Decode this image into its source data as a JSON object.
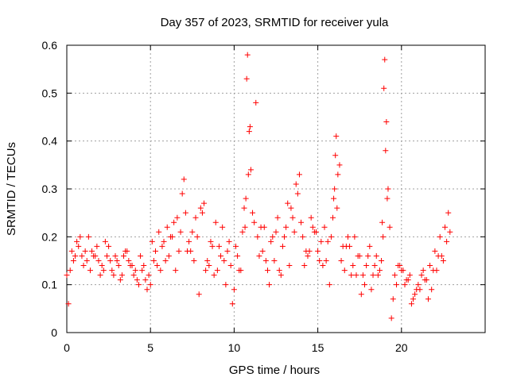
{
  "chart_data": {
    "type": "scatter",
    "title": "Day 357 of 2023, SRMTID for receiver yula",
    "xlabel": "GPS time / hours",
    "ylabel": "SRMTID / TECUs",
    "xlim": [
      0,
      25
    ],
    "ylim": [
      0,
      0.6
    ],
    "x_ticks": [
      0,
      5,
      10,
      15,
      20
    ],
    "x_tick_labels": [
      "0",
      "5",
      "10",
      "15",
      "20"
    ],
    "y_ticks": [
      0,
      0.1,
      0.2,
      0.3,
      0.4,
      0.5,
      0.6
    ],
    "y_tick_labels": [
      "0",
      "0.1",
      "0.2",
      "0.3",
      "0.4",
      "0.5",
      "0.6"
    ],
    "grid": true,
    "marker": "+",
    "series": [
      {
        "name": "SRMTID",
        "color": "#ff0000",
        "x": [
          0.0,
          0.3,
          0.6,
          0.9,
          1.2,
          1.5,
          1.8,
          2.1,
          2.4,
          2.7,
          3.0,
          3.3,
          3.6,
          3.9,
          4.2,
          4.5,
          4.8,
          5.1,
          5.4,
          5.7,
          6.0,
          6.3,
          6.6,
          6.9,
          7.2,
          7.5,
          7.8,
          8.1,
          8.4,
          8.7,
          9.0,
          9.3,
          9.6,
          9.9,
          10.2,
          10.5,
          10.7,
          10.8,
          10.9,
          11.0,
          11.1,
          11.4,
          11.7,
          12.0,
          12.3,
          12.6,
          12.9,
          13.2,
          13.5,
          13.8,
          14.1,
          14.4,
          14.7,
          15.0,
          15.3,
          15.6,
          15.9,
          16.0,
          16.1,
          16.2,
          16.5,
          16.8,
          17.1,
          17.4,
          17.7,
          18.0,
          18.3,
          18.6,
          18.8,
          18.9,
          19.0,
          19.1,
          19.3,
          19.6,
          19.9,
          20.2,
          20.5,
          20.8,
          21.1,
          21.4,
          21.7,
          22.0,
          22.3,
          22.6,
          22.9,
          0.1,
          0.4,
          0.7,
          1.0,
          1.3,
          1.6,
          1.9,
          2.2,
          2.5,
          2.8,
          3.1,
          3.4,
          3.7,
          4.0,
          4.3,
          4.6,
          4.9,
          5.2,
          5.5,
          5.8,
          6.1,
          6.4,
          6.7,
          7.0,
          7.3,
          7.6,
          7.9,
          8.2,
          8.5,
          8.8,
          9.1,
          9.4,
          9.7,
          10.0,
          10.3,
          10.6,
          11.3,
          11.6,
          11.9,
          12.2,
          12.5,
          12.8,
          13.1,
          13.4,
          13.7,
          14.0,
          14.3,
          14.6,
          14.9,
          15.2,
          15.5,
          15.8,
          16.3,
          16.6,
          16.9,
          17.2,
          17.5,
          17.8,
          18.1,
          18.4,
          18.7,
          19.2,
          19.5,
          19.8,
          20.1,
          20.4,
          20.7,
          21.0,
          21.3,
          21.6,
          21.9,
          22.2,
          22.5,
          22.8,
          0.2,
          0.5,
          0.8,
          1.1,
          1.4,
          1.7,
          2.0,
          2.3,
          2.6,
          2.9,
          3.2,
          3.5,
          3.8,
          4.1,
          4.4,
          4.7,
          5.0,
          5.3,
          5.6,
          5.9,
          6.2,
          6.5,
          6.8,
          7.1,
          7.4,
          7.7,
          8.0,
          8.3,
          8.6,
          8.9,
          9.2,
          9.5,
          9.8,
          10.1,
          10.4,
          10.65,
          10.75,
          10.85,
          10.95,
          11.2,
          11.5,
          11.8,
          12.1,
          12.4,
          12.7,
          13.0,
          13.3,
          13.6,
          13.9,
          14.2,
          14.5,
          14.8,
          15.1,
          15.4,
          15.7,
          15.95,
          16.05,
          16.15,
          16.4,
          16.7,
          17.0,
          17.3,
          17.6,
          17.9,
          18.2,
          18.5,
          18.85,
          18.95,
          19.05,
          19.15,
          19.4,
          19.7,
          20.0,
          20.3,
          20.6,
          20.9,
          21.2,
          21.5,
          21.8,
          22.1,
          22.4,
          22.7
        ],
        "y": [
          0.12,
          0.17,
          0.19,
          0.16,
          0.15,
          0.17,
          0.18,
          0.14,
          0.16,
          0.13,
          0.15,
          0.12,
          0.17,
          0.14,
          0.11,
          0.13,
          0.09,
          0.19,
          0.14,
          0.18,
          0.22,
          0.2,
          0.24,
          0.29,
          0.17,
          0.21,
          0.2,
          0.25,
          0.15,
          0.18,
          0.13,
          0.22,
          0.17,
          0.06,
          0.16,
          0.21,
          0.28,
          0.58,
          0.42,
          0.34,
          0.25,
          0.2,
          0.17,
          0.13,
          0.2,
          0.24,
          0.18,
          0.27,
          0.24,
          0.29,
          0.2,
          0.16,
          0.22,
          0.17,
          0.14,
          0.19,
          0.24,
          0.3,
          0.41,
          0.33,
          0.18,
          0.2,
          0.14,
          0.16,
          0.12,
          0.16,
          0.12,
          0.12,
          0.15,
          0.2,
          0.57,
          0.44,
          0.22,
          0.12,
          0.14,
          0.1,
          0.12,
          0.08,
          0.09,
          0.11,
          0.14,
          0.17,
          0.2,
          0.22,
          0.21,
          0.06,
          0.15,
          0.18,
          0.14,
          0.2,
          0.16,
          0.15,
          0.13,
          0.18,
          0.12,
          0.14,
          0.16,
          0.15,
          0.12,
          0.1,
          0.14,
          0.12,
          0.15,
          0.21,
          0.19,
          0.16,
          0.23,
          0.17,
          0.32,
          0.19,
          0.15,
          0.08,
          0.27,
          0.14,
          0.12,
          0.18,
          0.15,
          0.19,
          0.09,
          0.13,
          0.26,
          0.48,
          0.22,
          0.15,
          0.19,
          0.21,
          0.12,
          0.22,
          0.26,
          0.31,
          0.23,
          0.17,
          0.24,
          0.21,
          0.19,
          0.15,
          0.2,
          0.35,
          0.13,
          0.18,
          0.2,
          0.16,
          0.1,
          0.18,
          0.14,
          0.13,
          0.3,
          0.07,
          0.14,
          0.13,
          0.11,
          0.07,
          0.1,
          0.13,
          0.07,
          0.13,
          0.16,
          0.15,
          0.25,
          0.13,
          0.16,
          0.2,
          0.17,
          0.13,
          0.16,
          0.12,
          0.19,
          0.15,
          0.16,
          0.11,
          0.17,
          0.14,
          0.13,
          0.16,
          0.11,
          0.1,
          0.17,
          0.13,
          0.15,
          0.2,
          0.13,
          0.21,
          0.25,
          0.17,
          0.24,
          0.26,
          0.13,
          0.19,
          0.23,
          0.16,
          0.1,
          0.14,
          0.18,
          0.13,
          0.22,
          0.53,
          0.33,
          0.43,
          0.23,
          0.16,
          0.22,
          0.1,
          0.15,
          0.13,
          0.2,
          0.14,
          0.21,
          0.33,
          0.14,
          0.17,
          0.21,
          0.15,
          0.22,
          0.1,
          0.28,
          0.37,
          0.26,
          0.15,
          0.18,
          0.12,
          0.12,
          0.08,
          0.14,
          0.09,
          0.16,
          0.23,
          0.51,
          0.38,
          0.28,
          0.03,
          0.1,
          0.13,
          0.11,
          0.06,
          0.09,
          0.12,
          0.11,
          0.09,
          0.13,
          0.16,
          0.19
        ]
      }
    ]
  }
}
